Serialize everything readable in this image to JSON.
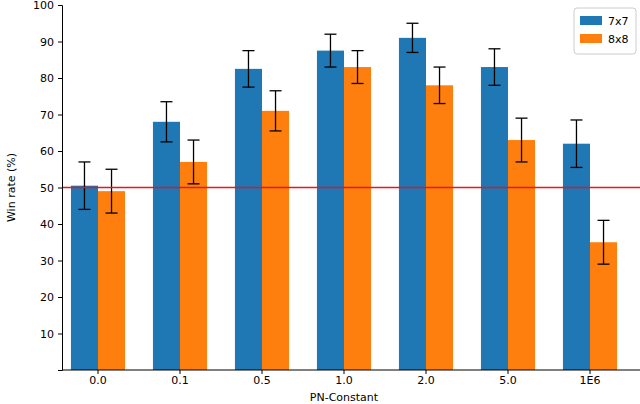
{
  "chart_data": {
    "type": "bar",
    "x_label": "PN-Constant",
    "y_label": "Win rate (%)",
    "categories": [
      "0.0",
      "0.1",
      "0.5",
      "1.0",
      "2.0",
      "5.0",
      "1E6"
    ],
    "series": [
      {
        "name": "7x7",
        "color": "#1f77b4",
        "values": [
          50.5,
          68,
          82.5,
          87.5,
          91,
          83,
          62
        ],
        "errors": [
          6.5,
          5.5,
          5,
          4.5,
          4,
          5,
          6.5
        ]
      },
      {
        "name": "8x8",
        "color": "#ff7f0e",
        "values": [
          49,
          57,
          71,
          83,
          78,
          63,
          35
        ],
        "errors": [
          6,
          6,
          5.5,
          4.5,
          5,
          6,
          6
        ]
      }
    ],
    "reference_line": 50,
    "ylim": [
      0,
      100
    ],
    "yticks": [
      10,
      20,
      30,
      40,
      50,
      60,
      70,
      80,
      90,
      100
    ],
    "grid": false,
    "legend": "upper right"
  }
}
